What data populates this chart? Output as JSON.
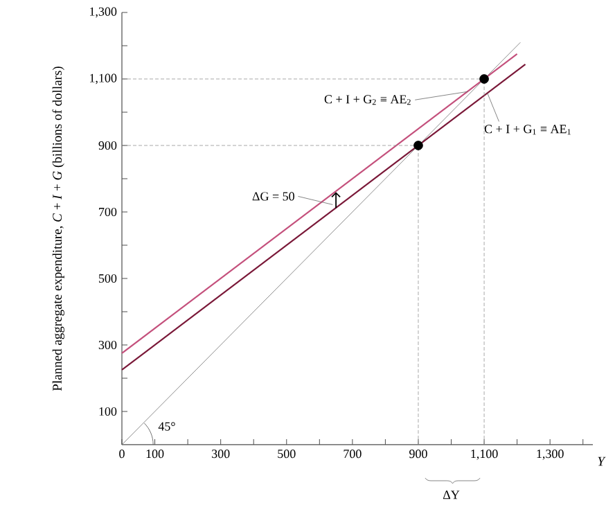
{
  "chart_data": {
    "type": "line",
    "xlabel": "Y",
    "ylabel": "Planned aggregate expenditure, *C* + *I* + *G* (billions of dollars)",
    "xlim": [
      0,
      1430
    ],
    "ylim": [
      0,
      1300
    ],
    "xticks": [
      0,
      100,
      {
        "value": 200,
        "label": null
      },
      300,
      {
        "value": 400,
        "label": null
      },
      500,
      {
        "value": 600,
        "label": null
      },
      700,
      {
        "value": 800,
        "label": null
      },
      900,
      {
        "value": 1000,
        "label": null
      },
      {
        "value": 1100,
        "label": "1,100"
      },
      {
        "value": 1200,
        "label": null
      },
      {
        "value": 1300,
        "label": "1,300"
      },
      {
        "value": 1400,
        "label": null
      }
    ],
    "yticks": [
      100,
      {
        "value": 200,
        "label": null
      },
      300,
      {
        "value": 400,
        "label": null
      },
      500,
      {
        "value": 600,
        "label": null
      },
      700,
      {
        "value": 800,
        "label": null
      },
      900,
      {
        "value": 1000,
        "label": null
      },
      {
        "value": 1100,
        "label": "1,100"
      },
      {
        "value": 1200,
        "label": null
      },
      {
        "value": 1300,
        "label": "1,300"
      }
    ],
    "grid": false,
    "series": [
      {
        "color": "#7a1838",
        "line_style": "solid",
        "x": [
          0,
          1225
        ],
        "values": [
          225,
          1144
        ]
      },
      {
        "color": "#c4507c",
        "line_style": "solid",
        "x": [
          0,
          1200
        ],
        "values": [
          275,
          1175
        ]
      },
      {
        "color": "#707070",
        "line_style": "solid",
        "x": [
          0,
          1210
        ],
        "values": [
          0,
          1210
        ]
      },
      {
        "color": "#909090",
        "line_style": "dashed",
        "x": [
          0,
          900
        ],
        "values": [
          900,
          900
        ]
      },
      {
        "color": "#909090",
        "line_style": "dashed",
        "x": [
          0,
          1100
        ],
        "values": [
          1100,
          1100
        ]
      },
      {
        "color": "#909090",
        "line_style": "dashed",
        "x": [
          900,
          900
        ],
        "values": [
          0,
          900
        ]
      },
      {
        "color": "#909090",
        "line_style": "dashed",
        "x": [
          1100,
          1100
        ],
        "values": [
          0,
          1100
        ]
      },
      {
        "type": "scatter",
        "color": "#000000",
        "x": [
          900,
          1100
        ],
        "values": [
          900,
          1100
        ]
      }
    ],
    "annotations": [
      {
        "text": "C + I + G$_{2}$ ≡ AE$_{2}$",
        "x": 1050,
        "y": 1062
      },
      {
        "text": "C + I + G$_{1}$ ≡ AE$_{1}$",
        "x": 1110,
        "y": 1057
      },
      {
        "text": "ΔG = 50",
        "x": 650,
        "y": 737
      },
      "45°",
      "ΔY"
    ]
  }
}
